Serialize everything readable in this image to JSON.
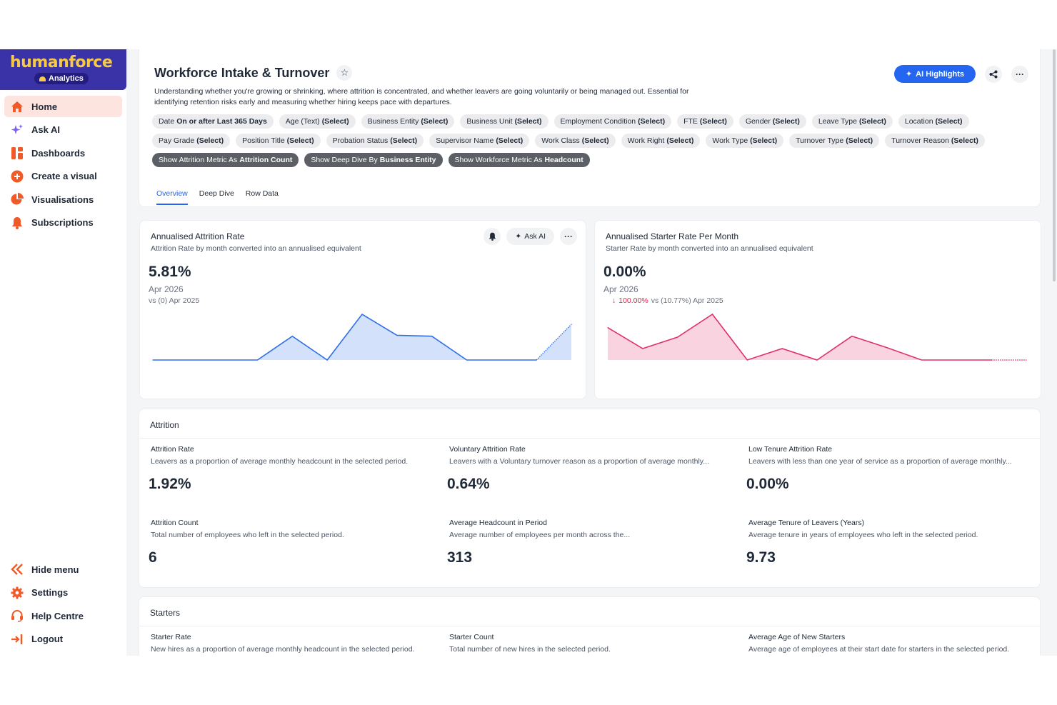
{
  "brand": {
    "name": "humanforce",
    "product": "Analytics"
  },
  "sidebar": {
    "items": [
      {
        "label": "Home",
        "icon": "home-icon"
      },
      {
        "label": "Ask AI",
        "icon": "sparkle-icon"
      },
      {
        "label": "Dashboards",
        "icon": "dashboard-icon"
      },
      {
        "label": "Create a visual",
        "icon": "plus-circle-icon"
      },
      {
        "label": "Visualisations",
        "icon": "pie-chart-icon"
      },
      {
        "label": "Subscriptions",
        "icon": "bell-icon"
      }
    ],
    "bottom": [
      {
        "label": "Hide menu",
        "icon": "chevrons-left-icon"
      },
      {
        "label": "Settings",
        "icon": "gear-icon"
      },
      {
        "label": "Help Centre",
        "icon": "headset-icon"
      },
      {
        "label": "Logout",
        "icon": "logout-icon"
      }
    ]
  },
  "header": {
    "title": "Workforce Intake & Turnover",
    "description": "Understanding whether you're growing or shrinking, where attrition is concentrated, and whether leavers are going voluntarily or being managed out. Essential for identifying retention risks early and measuring whether hiring keeps pace with departures.",
    "ai_highlights_label": "AI Highlights"
  },
  "filters": [
    {
      "name": "Date",
      "value": "On or after Last 365 Days"
    },
    {
      "name": "Age (Text)",
      "value": "(Select)"
    },
    {
      "name": "Business Entity",
      "value": "(Select)"
    },
    {
      "name": "Business Unit",
      "value": "(Select)"
    },
    {
      "name": "Employment Condition",
      "value": "(Select)"
    },
    {
      "name": "FTE",
      "value": "(Select)"
    },
    {
      "name": "Gender",
      "value": "(Select)"
    },
    {
      "name": "Leave Type",
      "value": "(Select)"
    },
    {
      "name": "Location",
      "value": "(Select)"
    },
    {
      "name": "Pay Grade",
      "value": "(Select)"
    },
    {
      "name": "Position Title",
      "value": "(Select)"
    },
    {
      "name": "Probation Status",
      "value": "(Select)"
    },
    {
      "name": "Supervisor Name",
      "value": "(Select)"
    },
    {
      "name": "Work Class",
      "value": "(Select)"
    },
    {
      "name": "Work Right",
      "value": "(Select)"
    },
    {
      "name": "Work Type",
      "value": "(Select)"
    },
    {
      "name": "Turnover Type",
      "value": "(Select)"
    },
    {
      "name": "Turnover Reason",
      "value": "(Select)"
    }
  ],
  "toggles": [
    {
      "name": "Show Attrition Metric As",
      "value": "Attrition Count"
    },
    {
      "name": "Show Deep Dive By",
      "value": "Business Entity"
    },
    {
      "name": "Show Workforce Metric As",
      "value": "Headcount"
    }
  ],
  "tabs": [
    "Overview",
    "Deep Dive",
    "Row Data"
  ],
  "kpi_cards": [
    {
      "title": "Annualised Attrition Rate",
      "subtitle": "Attrition Rate by month converted into an annualised equivalent",
      "value": "5.81%",
      "period": "Apr 2026",
      "change": "",
      "compare": "vs (0) Apr 2025",
      "ask_ai_label": "Ask AI",
      "color": "#2f6fe8",
      "fill": "#d3e2fa",
      "trend": [
        0,
        0,
        0,
        0,
        2.6,
        0,
        5,
        2.7,
        2.6,
        0,
        0,
        0,
        3.9
      ]
    },
    {
      "title": "Annualised Starter Rate Per Month",
      "subtitle": "Starter Rate by month converted into an annualised equivalent",
      "value": "0.00%",
      "period": "Apr 2026",
      "change": "100.00%",
      "compare": "vs (10.77%) Apr 2025",
      "color": "#e0316a",
      "fill": "#f9d4e0",
      "trend": [
        3.4,
        1.2,
        2.4,
        4.8,
        0,
        1.2,
        0,
        2.5,
        1.3,
        0,
        0,
        0,
        0
      ]
    }
  ],
  "sections": [
    {
      "title": "Attrition",
      "metrics": [
        {
          "title": "Attrition Rate",
          "subtitle": "Leavers as a proportion of average monthly headcount in the selected period.",
          "value": "1.92%"
        },
        {
          "title": "Voluntary Attrition Rate",
          "subtitle": "Leavers with a Voluntary turnover reason as a proportion of average monthly...",
          "value": "0.64%"
        },
        {
          "title": "Low Tenure Attrition Rate",
          "subtitle": "Leavers with less than one year of service as a proportion of average monthly...",
          "value": "0.00%"
        },
        {
          "title": "Attrition Count",
          "subtitle": "Total number of employees who left in the selected period.",
          "value": "6"
        },
        {
          "title": "Average Headcount in Period",
          "subtitle": "Average number of employees per month across the...",
          "value": "313"
        },
        {
          "title": "Average Tenure of Leavers (Years)",
          "subtitle": "Average tenure in years of employees who left in the selected period.",
          "value": "9.73"
        }
      ]
    },
    {
      "title": "Starters",
      "metrics": [
        {
          "title": "Starter Rate",
          "subtitle": "New hires as a proportion of average monthly headcount in the selected period."
        },
        {
          "title": "Starter Count",
          "subtitle": "Total number of new hires in the selected period."
        },
        {
          "title": "Average Age of New Starters",
          "subtitle": "Average age of employees at their start date for starters in the selected period."
        }
      ]
    }
  ]
}
